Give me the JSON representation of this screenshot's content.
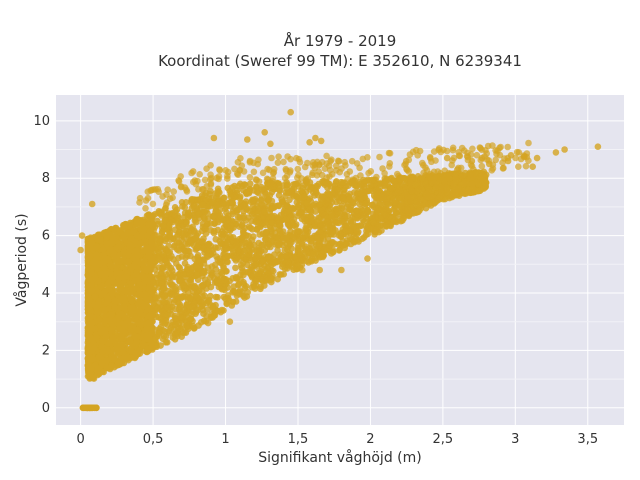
{
  "chart_data": {
    "type": "scatter",
    "title_line1": "År 1979 - 2019",
    "title_line2": "Koordinat (Sweref 99 TM): E 352610, N 6239341",
    "xlabel": "Signifikant våghöjd (m)",
    "ylabel": "Vågperiod (s)",
    "xlim": [
      -0.17,
      3.75
    ],
    "ylim": [
      -0.6,
      10.9
    ],
    "xticks": [
      0,
      0.5,
      1,
      1.5,
      2,
      2.5,
      3,
      3.5
    ],
    "xtick_labels": [
      "0",
      "0,5",
      "1",
      "1,5",
      "2",
      "2,5",
      "3",
      "3,5"
    ],
    "yticks": [
      0,
      2,
      4,
      6,
      8,
      10
    ],
    "ytick_labels": [
      "0",
      "2",
      "4",
      "6",
      "8",
      "10"
    ],
    "grid": true,
    "marker_color": "#d4a422",
    "background_color": "#e5e5ef",
    "points_note": "dense cloud: Hs 0.05–3.6 m, Tp 1–10.3 s; cluster at Tp=0 for Hs 0.01–0.12 m",
    "outlier_points": [
      {
        "x": 1.45,
        "y": 10.3
      },
      {
        "x": 1.27,
        "y": 9.6
      },
      {
        "x": 1.15,
        "y": 9.35
      },
      {
        "x": 1.31,
        "y": 9.2
      },
      {
        "x": 1.58,
        "y": 9.25
      },
      {
        "x": 0.92,
        "y": 9.4
      },
      {
        "x": 1.66,
        "y": 9.3
      },
      {
        "x": 1.62,
        "y": 9.4
      },
      {
        "x": 3.57,
        "y": 9.1
      },
      {
        "x": 3.34,
        "y": 9.0
      },
      {
        "x": 3.28,
        "y": 8.9
      },
      {
        "x": 3.15,
        "y": 8.7
      },
      {
        "x": 3.12,
        "y": 8.4
      },
      {
        "x": 2.97,
        "y": 8.8
      },
      {
        "x": 2.95,
        "y": 8.6
      },
      {
        "x": 2.82,
        "y": 8.5
      },
      {
        "x": 2.77,
        "y": 8.7
      },
      {
        "x": 2.7,
        "y": 8.6
      },
      {
        "x": 2.6,
        "y": 8.3
      },
      {
        "x": 2.53,
        "y": 8.7
      },
      {
        "x": 0.08,
        "y": 7.1
      },
      {
        "x": 0.01,
        "y": 6.0
      },
      {
        "x": 0.0,
        "y": 5.5
      },
      {
        "x": 1.8,
        "y": 4.8
      },
      {
        "x": 1.98,
        "y": 5.2
      },
      {
        "x": 1.53,
        "y": 4.8
      },
      {
        "x": 1.65,
        "y": 4.8
      },
      {
        "x": 0.88,
        "y": 2.95
      },
      {
        "x": 1.03,
        "y": 3.0
      }
    ],
    "zero_cluster": {
      "x_min": 0.01,
      "x_max": 0.12,
      "y": 0
    }
  }
}
